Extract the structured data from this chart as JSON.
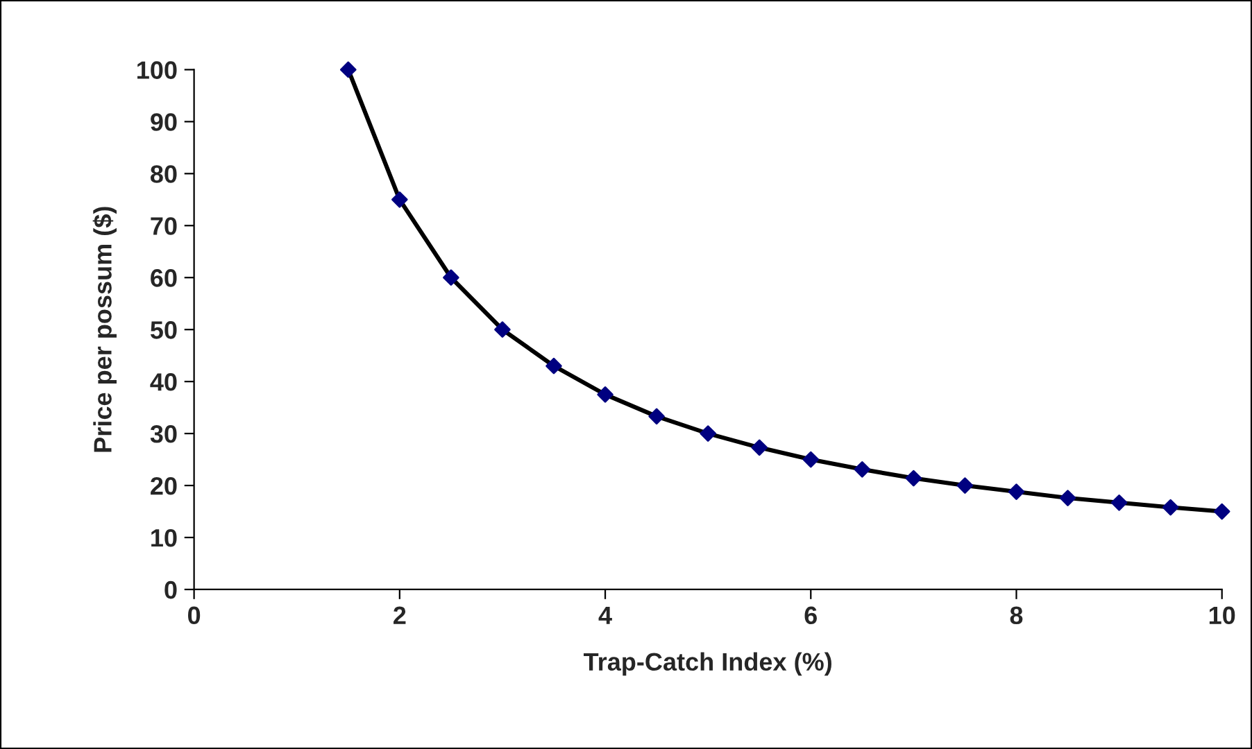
{
  "chart_data": {
    "type": "line",
    "xlabel": "Trap-Catch Index (%)",
    "ylabel": "Price per possum ($)",
    "x": [
      1.5,
      2,
      2.5,
      3,
      3.5,
      4,
      4.5,
      5,
      5.5,
      6,
      6.5,
      7,
      7.5,
      8,
      8.5,
      9,
      9.5,
      10
    ],
    "series": [
      {
        "color": "#000000",
        "marker": "none",
        "values": [
          100,
          75,
          60,
          50,
          43,
          37.5,
          33.3,
          30,
          27.3,
          25,
          23.1,
          21.4,
          20,
          18.8,
          17.6,
          16.7,
          15.8,
          15
        ]
      },
      {
        "type": "scatter",
        "color": "#000080",
        "marker": "diamond",
        "values": [
          100,
          75,
          60,
          50,
          43,
          37.5,
          33.3,
          30,
          27.3,
          25,
          23.1,
          21.4,
          20,
          18.8,
          17.6,
          16.7,
          15.8,
          15
        ]
      }
    ],
    "xlim": [
      0,
      10
    ],
    "xticks": [
      0,
      2,
      4,
      6,
      8,
      10
    ],
    "ylim": [
      0,
      100
    ],
    "yticks": [
      0,
      10,
      20,
      30,
      40,
      50,
      60,
      70,
      80,
      90,
      100
    ],
    "grid": false,
    "legend": false
  }
}
